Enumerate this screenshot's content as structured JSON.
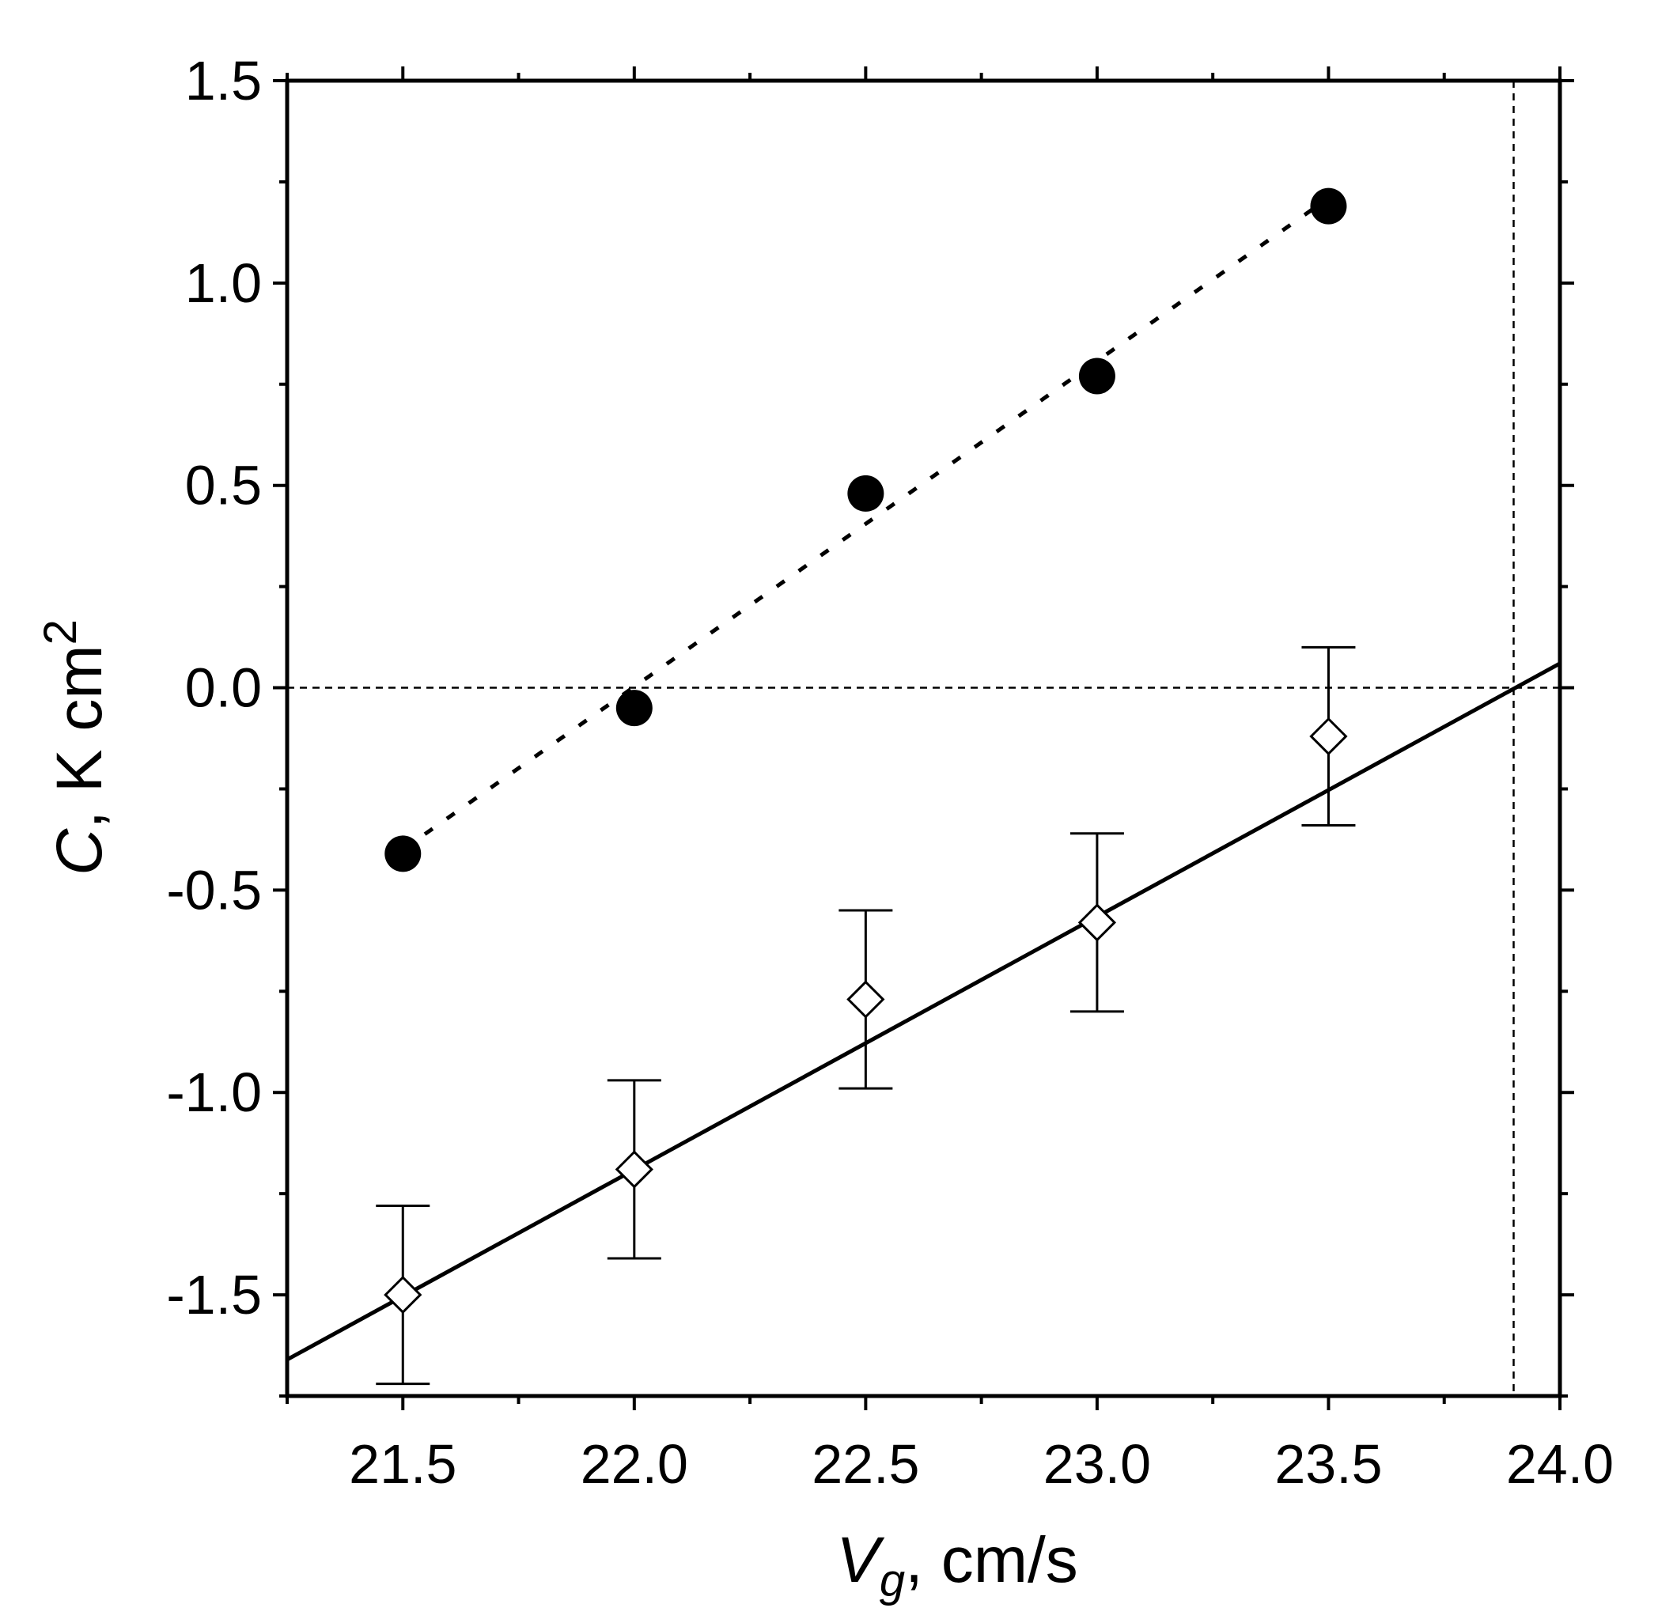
{
  "chart_data": {
    "type": "scatter",
    "title": "",
    "xlabel": {
      "symbol": "V",
      "subscript": "g",
      "unit": ", cm/s"
    },
    "ylabel": {
      "symbol": "C",
      "unit": ", K cm",
      "superscript": "2"
    },
    "xlim": [
      21.25,
      24.0
    ],
    "ylim": [
      -1.75,
      1.5
    ],
    "x_ticks": [
      "21.5",
      "22.0",
      "22.5",
      "23.0",
      "23.5",
      "24.0"
    ],
    "y_ticks": [
      "1.5",
      "1.0",
      "0.5",
      "0.0",
      "-0.5",
      "-1.0",
      "-1.5"
    ],
    "series": [
      {
        "marker": "filled-circle",
        "color": "#000000",
        "x": [
          21.5,
          22.0,
          22.5,
          23.0,
          23.5
        ],
        "y": [
          -0.41,
          -0.05,
          0.48,
          0.77,
          1.19
        ],
        "fit": {
          "style": "dashed",
          "x": [
            21.5,
            23.5
          ],
          "y": [
            -0.4,
            1.21
          ]
        }
      },
      {
        "marker": "open-diamond",
        "color": "#000000",
        "x": [
          21.5,
          22.0,
          22.5,
          23.0,
          23.5
        ],
        "y": [
          -1.5,
          -1.19,
          -0.77,
          -0.58,
          -0.12
        ],
        "error": [
          0.22,
          0.22,
          0.22,
          0.22,
          0.22
        ],
        "fit": {
          "style": "solid",
          "x": [
            21.25,
            24.0
          ],
          "y": [
            -1.66,
            0.06
          ]
        }
      }
    ],
    "reference_lines": [
      {
        "orientation": "horizontal",
        "value": 0.0,
        "style": "dashed"
      },
      {
        "orientation": "vertical",
        "value": 23.9,
        "style": "dashed"
      }
    ],
    "grid": false,
    "legend": "none"
  }
}
